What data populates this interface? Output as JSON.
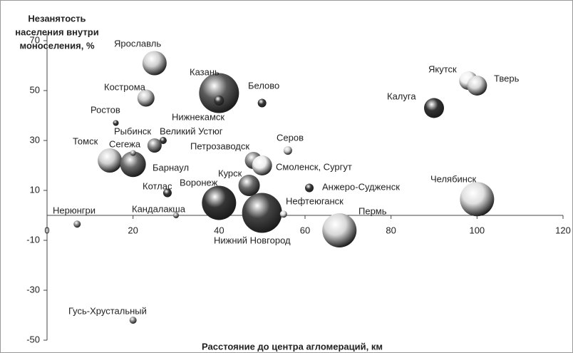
{
  "chart_data": {
    "type": "bubble",
    "y_label": [
      "Незанятость",
      "населения внутри",
      "моноселения, %"
    ],
    "x_label": "Расстояние до центра агломераций, км",
    "xlim": [
      0,
      120
    ],
    "xticks": [
      0,
      20,
      40,
      60,
      80,
      100,
      120
    ],
    "ylim": [
      -50,
      70
    ],
    "yticks": [
      -50,
      -30,
      -10,
      10,
      30,
      50,
      70
    ],
    "categories": [
      "Ярославль",
      "Казань",
      "Нижнекамск",
      "Белово",
      "Кострома",
      "Ростов",
      "Великий Устюг",
      "Рыбинск",
      "Томск",
      "Барнаул",
      "Сегежа",
      "Якутск",
      "Тверь",
      "Калуга",
      "Серов",
      "Петрозаводск",
      "Смоленск, Сургут",
      "Курск",
      "Анжеро-Судженск",
      "Котлас",
      "Воронеж",
      "Нижний Новгород",
      "Нефтеюганск",
      "Кандалакша",
      "Пермь",
      "Челябинск",
      "Нерюнгри",
      "Гусь-Хрустальный"
    ],
    "x": [
      25,
      40,
      40,
      50,
      23,
      16,
      27,
      25,
      14.6,
      20,
      20,
      98,
      100,
      90,
      56,
      48,
      50,
      47,
      61,
      28,
      40,
      50,
      55,
      30,
      68,
      100,
      7,
      20
    ],
    "values": [
      61,
      49,
      46,
      45,
      47,
      37,
      30,
      28,
      22,
      20.5,
      25,
      54,
      52,
      43,
      26,
      22,
      20,
      12,
      11,
      9,
      5,
      1,
      0.5,
      0,
      -6,
      6.5,
      -3.5,
      -42
    ],
    "sizes": [
      17,
      28,
      7,
      6,
      12,
      4,
      5,
      10,
      17,
      18,
      4,
      13,
      14,
      14,
      6,
      12,
      14,
      15,
      6,
      6,
      24,
      28,
      5,
      4,
      24,
      24,
      5,
      5
    ],
    "colors": [
      "#d0d0d0",
      "#5a5a5a",
      "#3a3a3a",
      "#3a3a3a",
      "#c8c8c8",
      "#3a3a3a",
      "#3a3a3a",
      "#8a8a8a",
      "#d0d0d0",
      "#6a6a6a",
      "#9a9a9a",
      "#f0f0f0",
      "#d8d8d8",
      "#333333",
      "#d0d0d0",
      "#8a8a8a",
      "#eeeeee",
      "#6a6a6a",
      "#3a3a3a",
      "#3a3a3a",
      "#353535",
      "#444444",
      "#dddddd",
      "#8a8a8a",
      "#d8d8d8",
      "#e0e0e0",
      "#8a8a8a",
      "#8a8a8a"
    ]
  }
}
